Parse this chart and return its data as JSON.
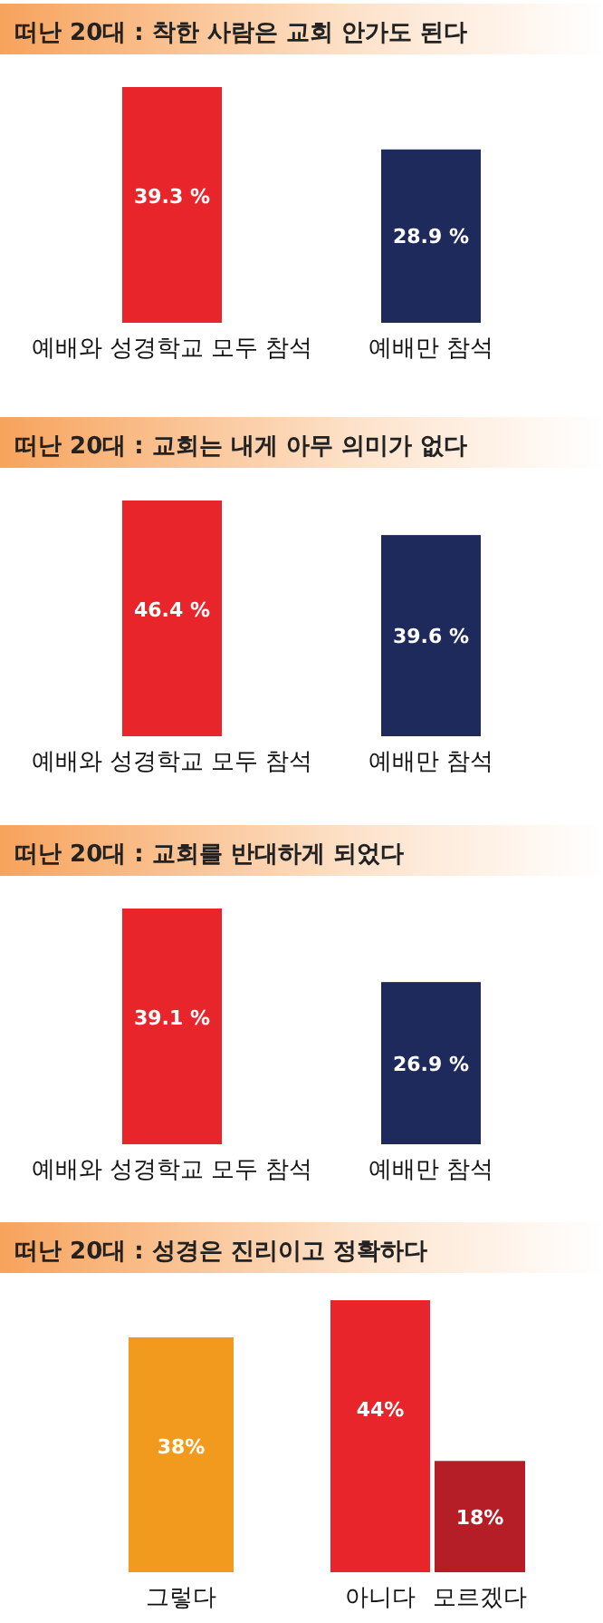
{
  "chart_data": [
    {
      "type": "bar",
      "title": "떠난 20대 : 착한 사람은 교회 안가도 된다",
      "categories": [
        "예배와 성경학교 모두 참석",
        "예배만 참석"
      ],
      "values": [
        39.3,
        28.9
      ],
      "colors": [
        "#e8252b",
        "#1f2a5c"
      ],
      "value_labels": [
        "39.3 %",
        "28.9 %"
      ]
    },
    {
      "type": "bar",
      "title": "떠난 20대 : 교회는 내게 아무 의미가 없다",
      "categories": [
        "예배와 성경학교 모두 참석",
        "예배만 참석"
      ],
      "values": [
        46.4,
        39.6
      ],
      "colors": [
        "#e8252b",
        "#1f2a5c"
      ],
      "value_labels": [
        "46.4 %",
        "39.6 %"
      ]
    },
    {
      "type": "bar",
      "title": "떠난 20대 : 교회를 반대하게 되었다",
      "categories": [
        "예배와 성경학교 모두 참석",
        "예배만 참석"
      ],
      "values": [
        39.1,
        26.9
      ],
      "colors": [
        "#e8252b",
        "#1f2a5c"
      ],
      "value_labels": [
        "39.1 %",
        "26.9 %"
      ]
    },
    {
      "type": "bar",
      "title": "떠난 20대 : 성경은 진리이고 정확하다",
      "categories": [
        "그렇다",
        "아니다",
        "모르겠다"
      ],
      "values": [
        38,
        44,
        18
      ],
      "colors": [
        "#f29a1e",
        "#e8252b",
        "#b51e27"
      ],
      "value_labels": [
        "38%",
        "44%",
        "18%"
      ]
    }
  ]
}
